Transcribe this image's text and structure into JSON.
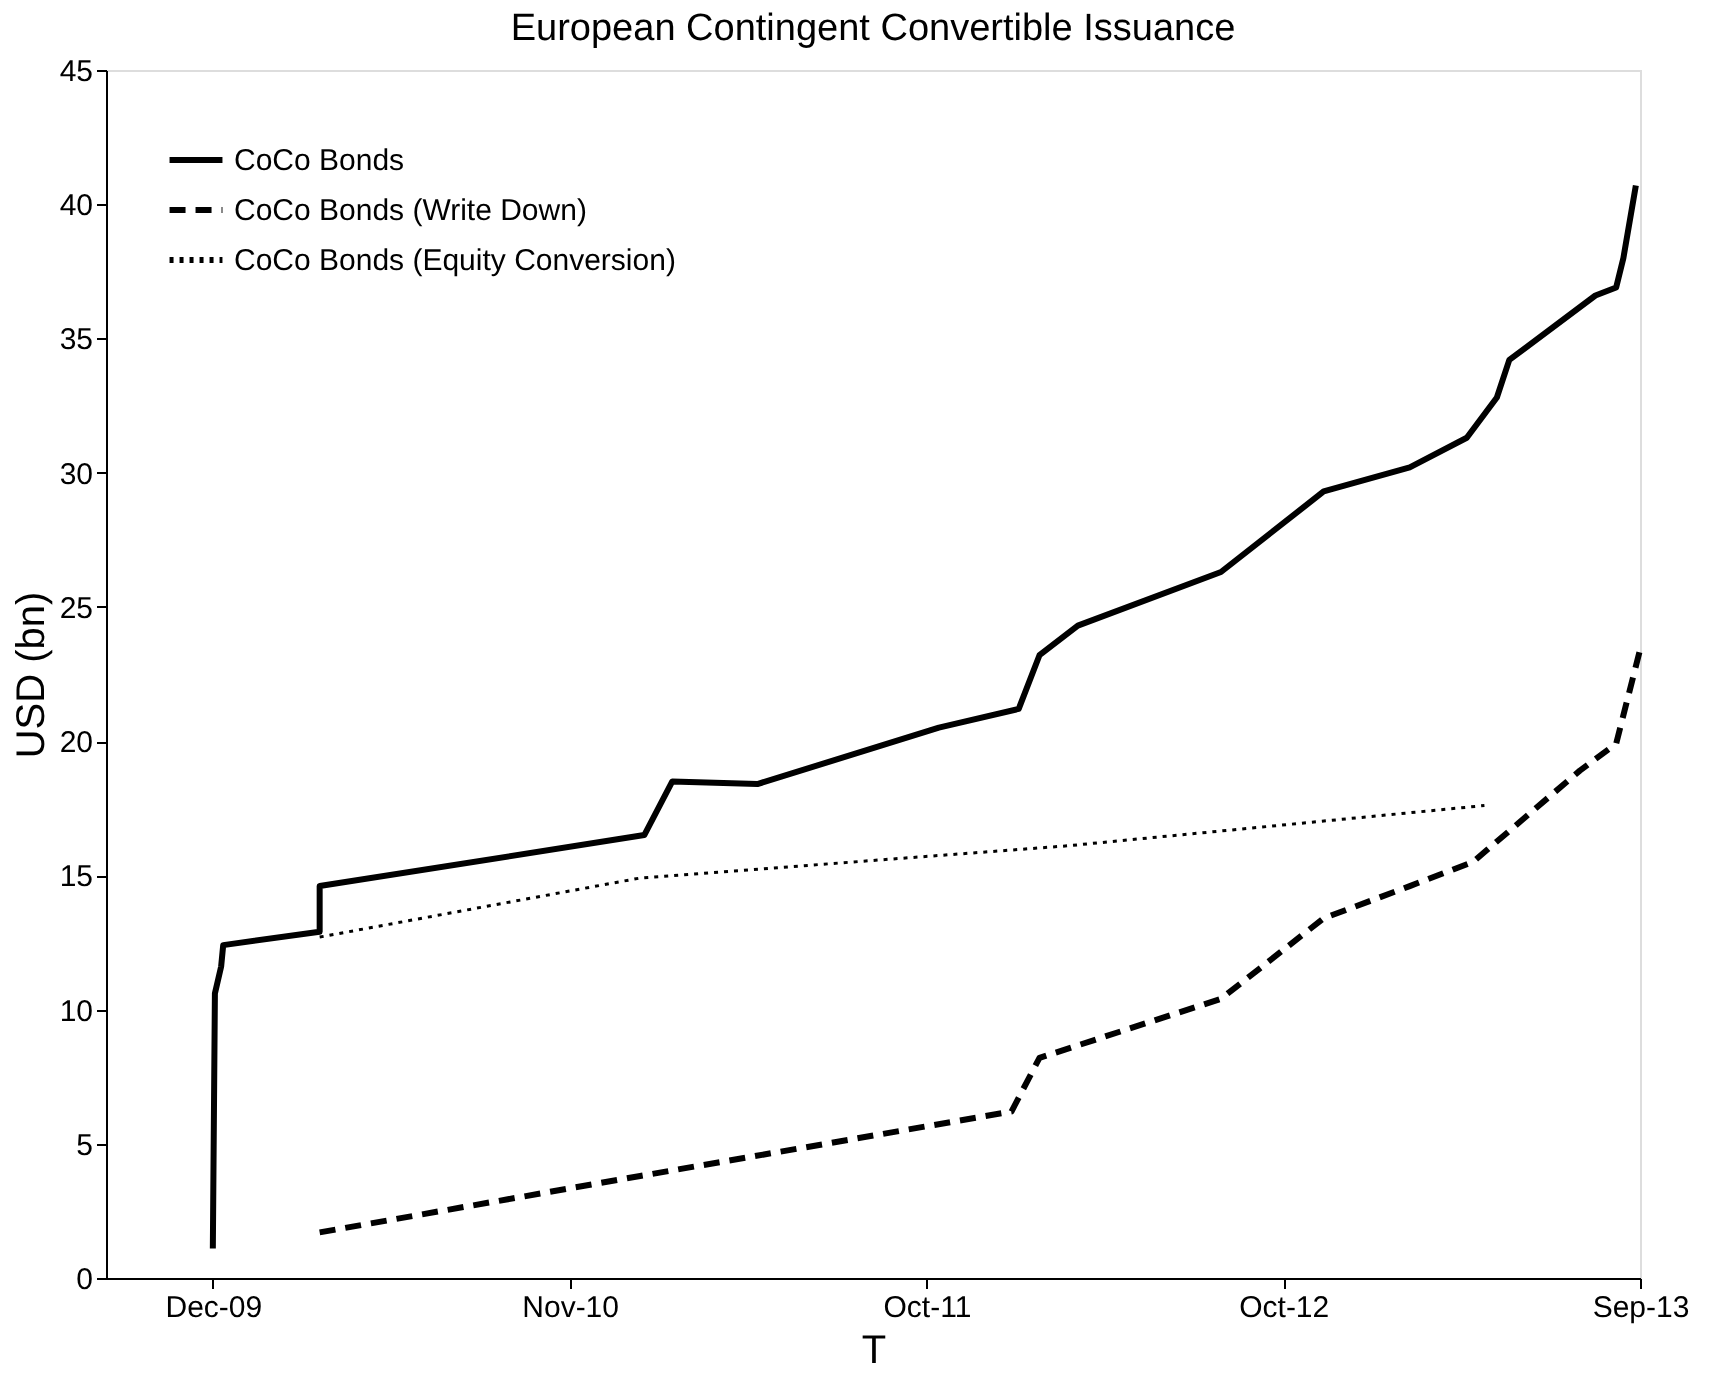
{
  "chart_data": {
    "type": "line",
    "title": "European Contingent Convertible Issuance",
    "xlabel": "T",
    "ylabel": "USD (bn)",
    "xlim": [
      "2009-08-24",
      "2013-09-11"
    ],
    "xticks": [
      {
        "value": "2009-12-05",
        "label": "Dec-09"
      },
      {
        "value": "2010-11-14",
        "label": "Nov-10"
      },
      {
        "value": "2011-10-24",
        "label": "Oct-11"
      },
      {
        "value": "2012-10-02",
        "label": "Oct-12"
      },
      {
        "value": "2013-09-11",
        "label": "Sep-13"
      }
    ],
    "ylim": [
      0,
      45
    ],
    "yticks": [
      0,
      5,
      10,
      15,
      20,
      25,
      30,
      35,
      40,
      45
    ],
    "grid": false,
    "legend": "top left",
    "marker": "none",
    "series": [
      {
        "name": "CoCo Bonds",
        "color": "#000000",
        "line_style": "solid",
        "x": [
          "2009-12-05",
          "2009-12-07",
          "2009-12-13",
          "2009-12-15",
          "2010-03-18",
          "2010-03-18",
          "2011-01-25",
          "2011-02-21",
          "2011-05-14",
          "2011-11-05",
          "2012-01-21",
          "2012-02-10",
          "2012-03-18",
          "2012-08-03",
          "2012-11-10",
          "2013-02-01",
          "2013-03-28",
          "2013-04-26",
          "2013-05-08",
          "2013-07-30",
          "2013-08-19",
          "2013-08-26",
          "2013-09-07"
        ],
        "values": [
          1.1,
          10.6,
          11.6,
          12.4,
          12.9,
          14.6,
          16.5,
          18.5,
          18.4,
          20.5,
          21.2,
          23.2,
          24.3,
          26.3,
          29.3,
          30.2,
          31.3,
          32.8,
          34.2,
          36.6,
          36.9,
          38.0,
          40.7
        ]
      },
      {
        "name": "CoCo Bonds (Write Down)",
        "color": "#000000",
        "line_style": "dashed",
        "x": [
          "2010-03-18",
          "2011-01-21",
          "2012-01-14",
          "2012-02-10",
          "2012-08-03",
          "2012-11-10",
          "2013-02-01",
          "2013-04-03",
          "2013-07-15",
          "2013-08-19",
          "2013-09-11"
        ],
        "values": [
          1.7,
          3.8,
          6.2,
          8.2,
          10.4,
          13.4,
          14.6,
          15.5,
          18.9,
          19.9,
          23.4
        ]
      },
      {
        "name": "CoCo Bonds (Equity Conversion)",
        "color": "#000000",
        "line_style": "dotted",
        "x": [
          "2010-03-18",
          "2011-01-21",
          "2012-03-08",
          "2013-04-14"
        ],
        "values": [
          12.7,
          14.9,
          16.1,
          17.6
        ]
      }
    ]
  }
}
